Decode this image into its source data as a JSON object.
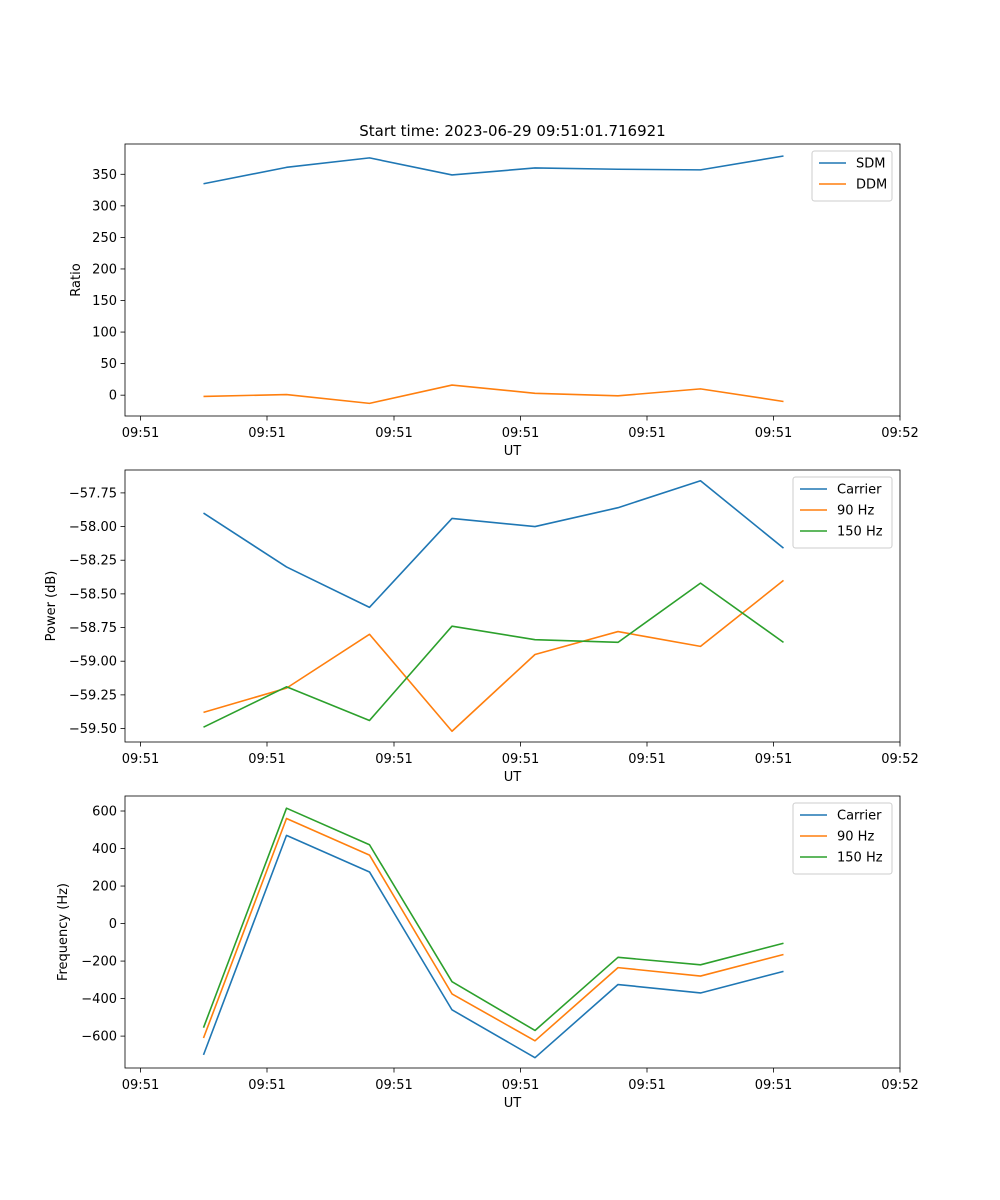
{
  "figure_title": "Start time: 2023-06-29 09:51:01.716921",
  "colors": {
    "blue": "#1f77b4",
    "orange": "#ff7f0e",
    "green": "#2ca02c"
  },
  "chart_data": [
    {
      "type": "line",
      "title": "Start time: 2023-06-29 09:51:01.716921",
      "xlabel": "UT",
      "ylabel": "Ratio",
      "x_tick_labels": [
        "09:51",
        "09:51",
        "09:51",
        "09:51",
        "09:51",
        "09:51",
        "09:52"
      ],
      "y_ticks": [
        0,
        50,
        100,
        150,
        200,
        250,
        300,
        350
      ],
      "y_tick_labels": [
        "0",
        "50",
        "100",
        "150",
        "200",
        "250",
        "300",
        "350"
      ],
      "ylim": [
        -33,
        398
      ],
      "grid": false,
      "legend": "top-right",
      "series": [
        {
          "name": "SDM",
          "color": "#1f77b4",
          "values": [
            335,
            361,
            376,
            349,
            360,
            358,
            357,
            379
          ]
        },
        {
          "name": "DDM",
          "color": "#ff7f0e",
          "values": [
            -2,
            1,
            -13,
            16,
            3,
            -1,
            10,
            -10
          ]
        }
      ]
    },
    {
      "type": "line",
      "title": "",
      "xlabel": "UT",
      "ylabel": "Power (dB)",
      "x_tick_labels": [
        "09:51",
        "09:51",
        "09:51",
        "09:51",
        "09:51",
        "09:51",
        "09:52"
      ],
      "y_ticks": [
        -59.5,
        -59.25,
        -59.0,
        -58.75,
        -58.5,
        -58.25,
        -58.0,
        -57.75
      ],
      "y_tick_labels": [
        "−59.50",
        "−59.25",
        "−59.00",
        "−58.75",
        "−58.50",
        "−58.25",
        "−58.00",
        "−57.75"
      ],
      "ylim": [
        -59.6,
        -57.58
      ],
      "grid": false,
      "legend": "top-right",
      "series": [
        {
          "name": "Carrier",
          "color": "#1f77b4",
          "values": [
            -57.9,
            -58.3,
            -58.6,
            -57.94,
            -58.0,
            -57.86,
            -57.66,
            -58.16
          ]
        },
        {
          "name": "90 Hz",
          "color": "#ff7f0e",
          "values": [
            -59.38,
            -59.2,
            -58.8,
            -59.52,
            -58.95,
            -58.78,
            -58.89,
            -58.4
          ]
        },
        {
          "name": "150 Hz",
          "color": "#2ca02c",
          "values": [
            -59.49,
            -59.19,
            -59.44,
            -58.74,
            -58.84,
            -58.86,
            -58.42,
            -58.86
          ]
        }
      ]
    },
    {
      "type": "line",
      "title": "",
      "xlabel": "UT",
      "ylabel": "Frequency (Hz)",
      "x_tick_labels": [
        "09:51",
        "09:51",
        "09:51",
        "09:51",
        "09:51",
        "09:51",
        "09:52"
      ],
      "y_ticks": [
        -600,
        -400,
        -200,
        0,
        200,
        400,
        600
      ],
      "y_tick_labels": [
        "−600",
        "−400",
        "−200",
        "0",
        "200",
        "400",
        "600"
      ],
      "ylim": [
        -770,
        680
      ],
      "grid": false,
      "legend": "top-right",
      "series": [
        {
          "name": "Carrier",
          "color": "#1f77b4",
          "values": [
            -700,
            470,
            275,
            -460,
            -715,
            -325,
            -370,
            -255
          ]
        },
        {
          "name": "90 Hz",
          "color": "#ff7f0e",
          "values": [
            -610,
            560,
            365,
            -375,
            -625,
            -235,
            -280,
            -165
          ]
        },
        {
          "name": "150 Hz",
          "color": "#2ca02c",
          "values": [
            -555,
            615,
            420,
            -310,
            -570,
            -180,
            -220,
            -105
          ]
        }
      ]
    }
  ]
}
